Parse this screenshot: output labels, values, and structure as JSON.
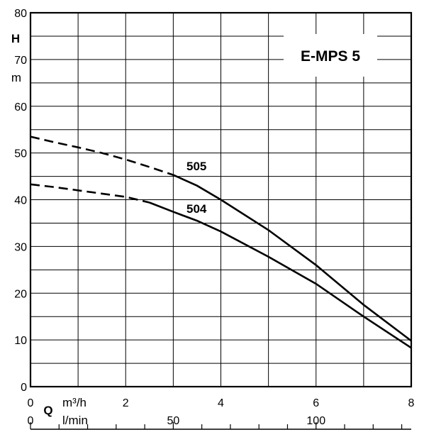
{
  "chart_data": {
    "type": "line",
    "title": "E-MPS 5",
    "ylabel": "H",
    "yunit": "m",
    "xlabel": "Q",
    "x_unit_primary": "m³/h",
    "x_unit_secondary": "l/min",
    "xlim": [
      0,
      8
    ],
    "ylim": [
      0,
      80
    ],
    "x_ticks": [
      "0",
      "2",
      "4",
      "6",
      "8"
    ],
    "y_ticks": [
      "0",
      "10",
      "20",
      "30",
      "40",
      "50",
      "60",
      "70",
      "80"
    ],
    "secondary_ticks": [
      {
        "label": "0",
        "lpm": 0
      },
      {
        "label": "50",
        "lpm": 50
      },
      {
        "label": "100",
        "lpm": 100
      }
    ],
    "grid": true,
    "series": [
      {
        "name": "505",
        "dashed": [
          [
            0,
            53.5
          ],
          [
            0.5,
            52.3
          ],
          [
            1,
            51.2
          ],
          [
            1.5,
            50.0
          ],
          [
            2,
            48.6
          ],
          [
            2.5,
            47.0
          ],
          [
            3,
            45.3
          ]
        ],
        "solid": [
          [
            3,
            45.3
          ],
          [
            3.5,
            43.0
          ],
          [
            4,
            40.0
          ],
          [
            5,
            33.5
          ],
          [
            6,
            26.0
          ],
          [
            7,
            17.5
          ],
          [
            8,
            9.8
          ]
        ]
      },
      {
        "name": "504",
        "dashed": [
          [
            0,
            43.3
          ],
          [
            0.5,
            42.7
          ],
          [
            1,
            42.0
          ],
          [
            1.5,
            41.3
          ],
          [
            2,
            40.6
          ],
          [
            2.5,
            39.4
          ]
        ],
        "solid": [
          [
            2.5,
            39.4
          ],
          [
            3,
            37.4
          ],
          [
            3.5,
            35.5
          ],
          [
            4,
            33.2
          ],
          [
            5,
            27.8
          ],
          [
            6,
            22.0
          ],
          [
            7,
            15.0
          ],
          [
            8,
            8.3
          ]
        ]
      }
    ]
  }
}
